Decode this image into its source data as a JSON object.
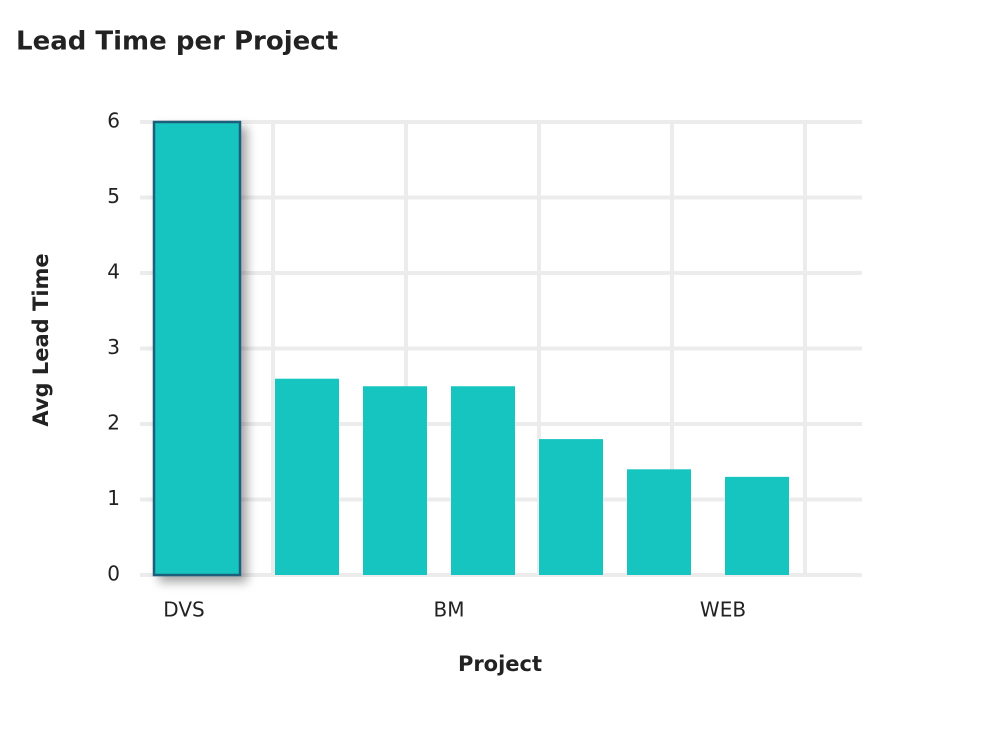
{
  "chart_data": {
    "type": "bar",
    "title": "Lead Time per Project",
    "x_label": "Project",
    "y_label": "Avg Lead Time",
    "categories": [
      "DVS",
      null,
      null,
      "BM",
      null,
      null,
      "WEB"
    ],
    "values": [
      6,
      2.6,
      2.5,
      2.5,
      1.8,
      1.4,
      1.3
    ],
    "color": "#17c5c0",
    "ylim": [
      0,
      6
    ],
    "yticks": [
      0,
      1,
      2,
      3,
      4,
      5,
      6
    ],
    "grid": true
  }
}
